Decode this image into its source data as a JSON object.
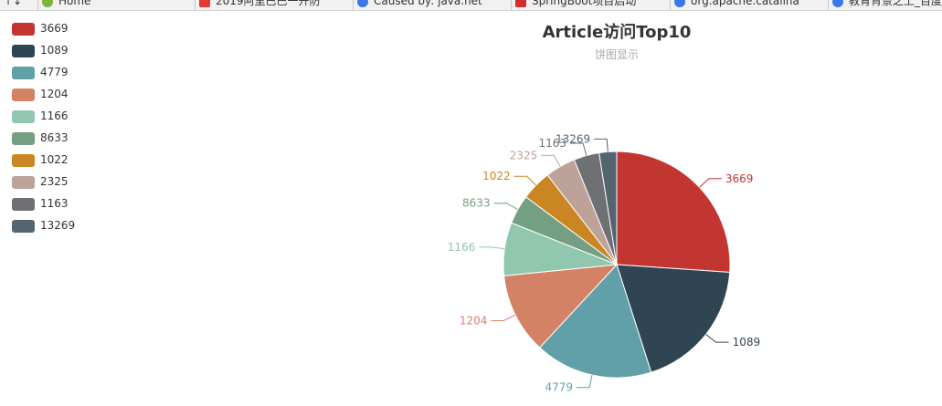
{
  "browser": {
    "tabs": [
      {
        "label": "Home",
        "icon": "leaf-icon",
        "color": "#7cb342"
      },
      {
        "label": "2019阿里巴巴一开防",
        "icon": "app-icon",
        "color": "#e53935"
      },
      {
        "label": "Caused by: java.net",
        "icon": "paw-icon",
        "color": "#3b78e7"
      },
      {
        "label": "SpringBoot项目启动",
        "icon": "c-icon",
        "color": "#d32f2f"
      },
      {
        "label": "org.apache.catalina",
        "icon": "paw-icon",
        "color": "#3b78e7"
      },
      {
        "label": "教育背景之上_百度",
        "icon": "paw-icon",
        "color": "#3b78e7"
      }
    ]
  },
  "chart_data": {
    "type": "pie",
    "title": "Article访问Top10",
    "subtitle": "饼图显示",
    "legend_position": "top-left",
    "slices": [
      {
        "label": "3669",
        "value": 3669,
        "color": "#c23531"
      },
      {
        "label": "1089",
        "value": 2672,
        "color": "#2f4554"
      },
      {
        "label": "4779",
        "value": 2365,
        "color": "#61a0a8"
      },
      {
        "label": "1204",
        "value": 1621,
        "color": "#d48265"
      },
      {
        "label": "1166",
        "value": 1068,
        "color": "#91c7ae"
      },
      {
        "label": "8633",
        "value": 590,
        "color": "#749f83"
      },
      {
        "label": "1022",
        "value": 609,
        "color": "#ca8622"
      },
      {
        "label": "2325",
        "value": 610,
        "color": "#bda29a"
      },
      {
        "label": "1163",
        "value": 511,
        "color": "#6e7074"
      },
      {
        "label": "13269",
        "value": 351,
        "color": "#546570"
      }
    ]
  }
}
